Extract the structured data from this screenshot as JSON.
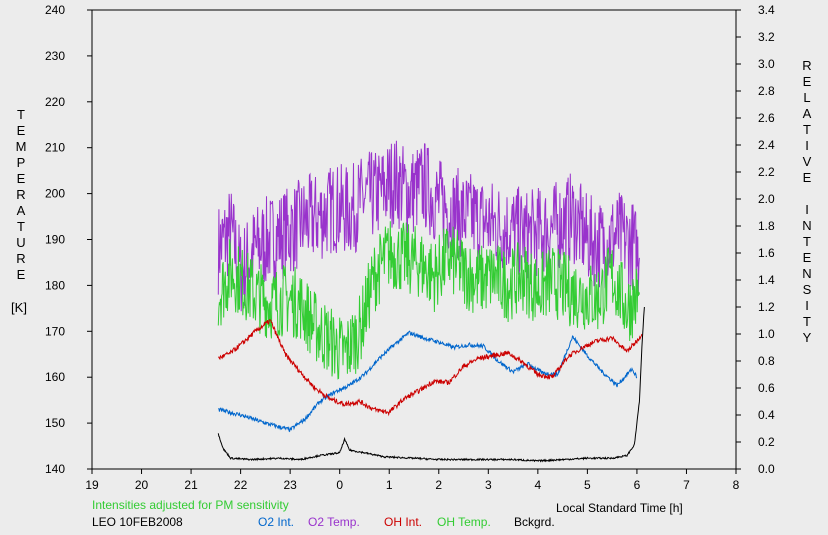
{
  "chart_data": {
    "type": "line",
    "title": "",
    "xlabel": "Local Standard Time [h]",
    "ylabel_left": "TEMPERATURE",
    "ylabel_left_unit": "[K]",
    "ylabel_right": "RELATIVE INTENSITY",
    "xlim": [
      19,
      8
    ],
    "x_ticks": [
      "19",
      "20",
      "21",
      "22",
      "23",
      "0",
      "1",
      "2",
      "3",
      "4",
      "5",
      "6",
      "7",
      "8"
    ],
    "ylim_left": [
      140,
      240
    ],
    "y_ticks_left": [
      "140",
      "150",
      "160",
      "170",
      "180",
      "190",
      "200",
      "210",
      "220",
      "230",
      "240"
    ],
    "ylim_right": [
      0,
      3.4
    ],
    "y_ticks_right": [
      "0.0",
      "0.2",
      "0.4",
      "0.6",
      "0.8",
      "1.0",
      "1.2",
      "1.4",
      "1.6",
      "1.8",
      "2.0",
      "2.2",
      "2.4",
      "2.6",
      "2.8",
      "3.0",
      "3.2",
      "3.4"
    ],
    "grid": false,
    "note": "Intensities adjusted for PM sensitivity",
    "station": "LEO 10FEB2008",
    "series": [
      {
        "name": "O2 Int.",
        "axis": "right",
        "color": "#0066cc",
        "points": [
          [
            21.55,
            0.44
          ],
          [
            22.0,
            0.4
          ],
          [
            22.5,
            0.34
          ],
          [
            23.0,
            0.29
          ],
          [
            23.3,
            0.37
          ],
          [
            23.6,
            0.5
          ],
          [
            23.9,
            0.57
          ],
          [
            0.2,
            0.62
          ],
          [
            0.5,
            0.7
          ],
          [
            0.8,
            0.82
          ],
          [
            1.1,
            0.92
          ],
          [
            1.4,
            1.01
          ],
          [
            1.7,
            0.97
          ],
          [
            2.0,
            0.94
          ],
          [
            2.3,
            0.9
          ],
          [
            2.6,
            0.92
          ],
          [
            2.9,
            0.91
          ],
          [
            3.2,
            0.8
          ],
          [
            3.5,
            0.72
          ],
          [
            3.8,
            0.78
          ],
          [
            4.1,
            0.71
          ],
          [
            4.4,
            0.7
          ],
          [
            4.7,
            0.98
          ],
          [
            5.0,
            0.84
          ],
          [
            5.3,
            0.72
          ],
          [
            5.6,
            0.62
          ],
          [
            5.9,
            0.74
          ],
          [
            6.0,
            0.68
          ]
        ]
      },
      {
        "name": "O2 Temp.",
        "axis": "left",
        "color": "#9933cc",
        "points": [
          [
            21.55,
            188
          ],
          [
            21.8,
            192
          ],
          [
            22.0,
            183
          ],
          [
            22.3,
            188
          ],
          [
            22.6,
            190
          ],
          [
            23.0,
            192
          ],
          [
            23.3,
            194
          ],
          [
            23.6,
            195
          ],
          [
            23.9,
            197
          ],
          [
            0.2,
            196
          ],
          [
            0.5,
            199
          ],
          [
            0.8,
            200
          ],
          [
            1.1,
            203
          ],
          [
            1.4,
            200
          ],
          [
            1.7,
            202
          ],
          [
            2.0,
            198
          ],
          [
            2.3,
            196
          ],
          [
            2.6,
            195
          ],
          [
            2.9,
            194
          ],
          [
            3.2,
            193
          ],
          [
            3.5,
            192
          ],
          [
            3.8,
            191
          ],
          [
            4.1,
            192
          ],
          [
            4.4,
            193
          ],
          [
            4.7,
            195
          ],
          [
            5.0,
            190
          ],
          [
            5.3,
            189
          ],
          [
            5.6,
            191
          ],
          [
            5.9,
            189
          ],
          [
            6.05,
            186
          ]
        ]
      },
      {
        "name": "OH Int.",
        "axis": "right",
        "color": "#cc0000",
        "points": [
          [
            21.55,
            0.82
          ],
          [
            21.8,
            0.86
          ],
          [
            22.0,
            0.92
          ],
          [
            22.3,
            1.02
          ],
          [
            22.6,
            1.1
          ],
          [
            22.9,
            0.85
          ],
          [
            23.2,
            0.72
          ],
          [
            23.5,
            0.6
          ],
          [
            23.8,
            0.52
          ],
          [
            0.1,
            0.48
          ],
          [
            0.4,
            0.5
          ],
          [
            0.7,
            0.44
          ],
          [
            1.0,
            0.42
          ],
          [
            1.3,
            0.52
          ],
          [
            1.6,
            0.58
          ],
          [
            1.9,
            0.65
          ],
          [
            2.2,
            0.64
          ],
          [
            2.5,
            0.76
          ],
          [
            2.8,
            0.82
          ],
          [
            3.1,
            0.84
          ],
          [
            3.4,
            0.86
          ],
          [
            3.7,
            0.79
          ],
          [
            4.0,
            0.7
          ],
          [
            4.3,
            0.68
          ],
          [
            4.6,
            0.83
          ],
          [
            4.9,
            0.9
          ],
          [
            5.2,
            0.95
          ],
          [
            5.5,
            0.97
          ],
          [
            5.8,
            0.87
          ],
          [
            6.0,
            0.95
          ],
          [
            6.1,
            1.0
          ]
        ]
      },
      {
        "name": "OH Temp.",
        "axis": "left",
        "color": "#33cc33",
        "points": [
          [
            21.55,
            178
          ],
          [
            21.8,
            183
          ],
          [
            22.0,
            181
          ],
          [
            22.3,
            178
          ],
          [
            22.6,
            176
          ],
          [
            22.9,
            177
          ],
          [
            23.2,
            176
          ],
          [
            23.5,
            171
          ],
          [
            23.8,
            168
          ],
          [
            0.1,
            165
          ],
          [
            0.4,
            170
          ],
          [
            0.7,
            182
          ],
          [
            1.0,
            187
          ],
          [
            1.3,
            186
          ],
          [
            1.6,
            185
          ],
          [
            1.9,
            182
          ],
          [
            2.2,
            186
          ],
          [
            2.5,
            183
          ],
          [
            2.8,
            181
          ],
          [
            3.1,
            182
          ],
          [
            3.4,
            180
          ],
          [
            3.7,
            182
          ],
          [
            4.0,
            179
          ],
          [
            4.3,
            181
          ],
          [
            4.6,
            179
          ],
          [
            4.9,
            178
          ],
          [
            5.2,
            177
          ],
          [
            5.5,
            182
          ],
          [
            5.8,
            175
          ],
          [
            6.05,
            178
          ]
        ]
      },
      {
        "name": "Bckgrd.",
        "axis": "right",
        "color": "#000000",
        "points": [
          [
            21.55,
            0.26
          ],
          [
            21.65,
            0.15
          ],
          [
            21.8,
            0.08
          ],
          [
            22.2,
            0.07
          ],
          [
            22.8,
            0.08
          ],
          [
            23.2,
            0.07
          ],
          [
            23.6,
            0.1
          ],
          [
            0.0,
            0.12
          ],
          [
            0.1,
            0.22
          ],
          [
            0.2,
            0.14
          ],
          [
            0.5,
            0.12
          ],
          [
            0.9,
            0.09
          ],
          [
            1.5,
            0.08
          ],
          [
            2.0,
            0.07
          ],
          [
            2.5,
            0.07
          ],
          [
            3.0,
            0.07
          ],
          [
            3.5,
            0.07
          ],
          [
            4.0,
            0.06
          ],
          [
            4.5,
            0.07
          ],
          [
            5.0,
            0.08
          ],
          [
            5.5,
            0.08
          ],
          [
            5.8,
            0.1
          ],
          [
            5.95,
            0.18
          ],
          [
            6.05,
            0.5
          ],
          [
            6.1,
            0.9
          ],
          [
            6.15,
            1.2
          ]
        ]
      }
    ]
  }
}
